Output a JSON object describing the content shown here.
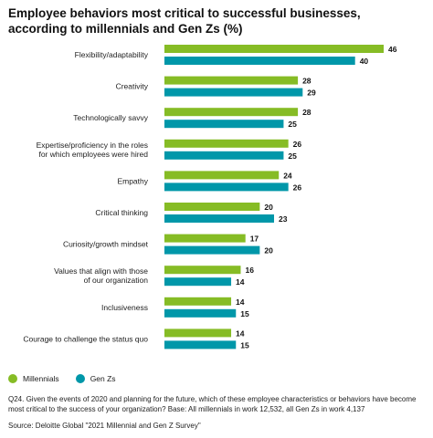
{
  "chart_data": {
    "type": "bar",
    "orientation": "horizontal",
    "title": "Employee behaviors most critical to successful businesses, according to millennials and Gen Zs (%)",
    "categories": [
      [
        "Flexibility/adaptability"
      ],
      [
        "Creativity"
      ],
      [
        "Technologically savvy"
      ],
      [
        "Expertise/proficiency in the roles",
        "for which employees were hired"
      ],
      [
        "Empathy"
      ],
      [
        "Critical thinking"
      ],
      [
        "Curiosity/growth mindset"
      ],
      [
        "Values that align with those",
        "of our organization"
      ],
      [
        "Inclusiveness"
      ],
      [
        "Courage to challenge the status quo"
      ]
    ],
    "series": [
      {
        "name": "Millennials",
        "color": "#86bc25",
        "values": [
          46,
          28,
          28,
          26,
          24,
          20,
          17,
          16,
          14,
          14
        ]
      },
      {
        "name": "Gen Zs",
        "color": "#0097a9",
        "values": [
          40,
          29,
          25,
          25,
          26,
          23,
          20,
          14,
          15,
          15
        ]
      }
    ],
    "xlim": [
      0,
      46
    ],
    "grid": false,
    "data_labels": true,
    "legend": "bottom-left"
  },
  "footnote": "Q24. Given the events of 2020 and planning for the future, which of these employee characteristics or behaviors have become most critical to the success of your organization? Base: All millennials in work 12,532, all Gen Zs in work 4,137",
  "source": "Source: Deloitte Global \"2021 Millennial and Gen Z Survey\""
}
